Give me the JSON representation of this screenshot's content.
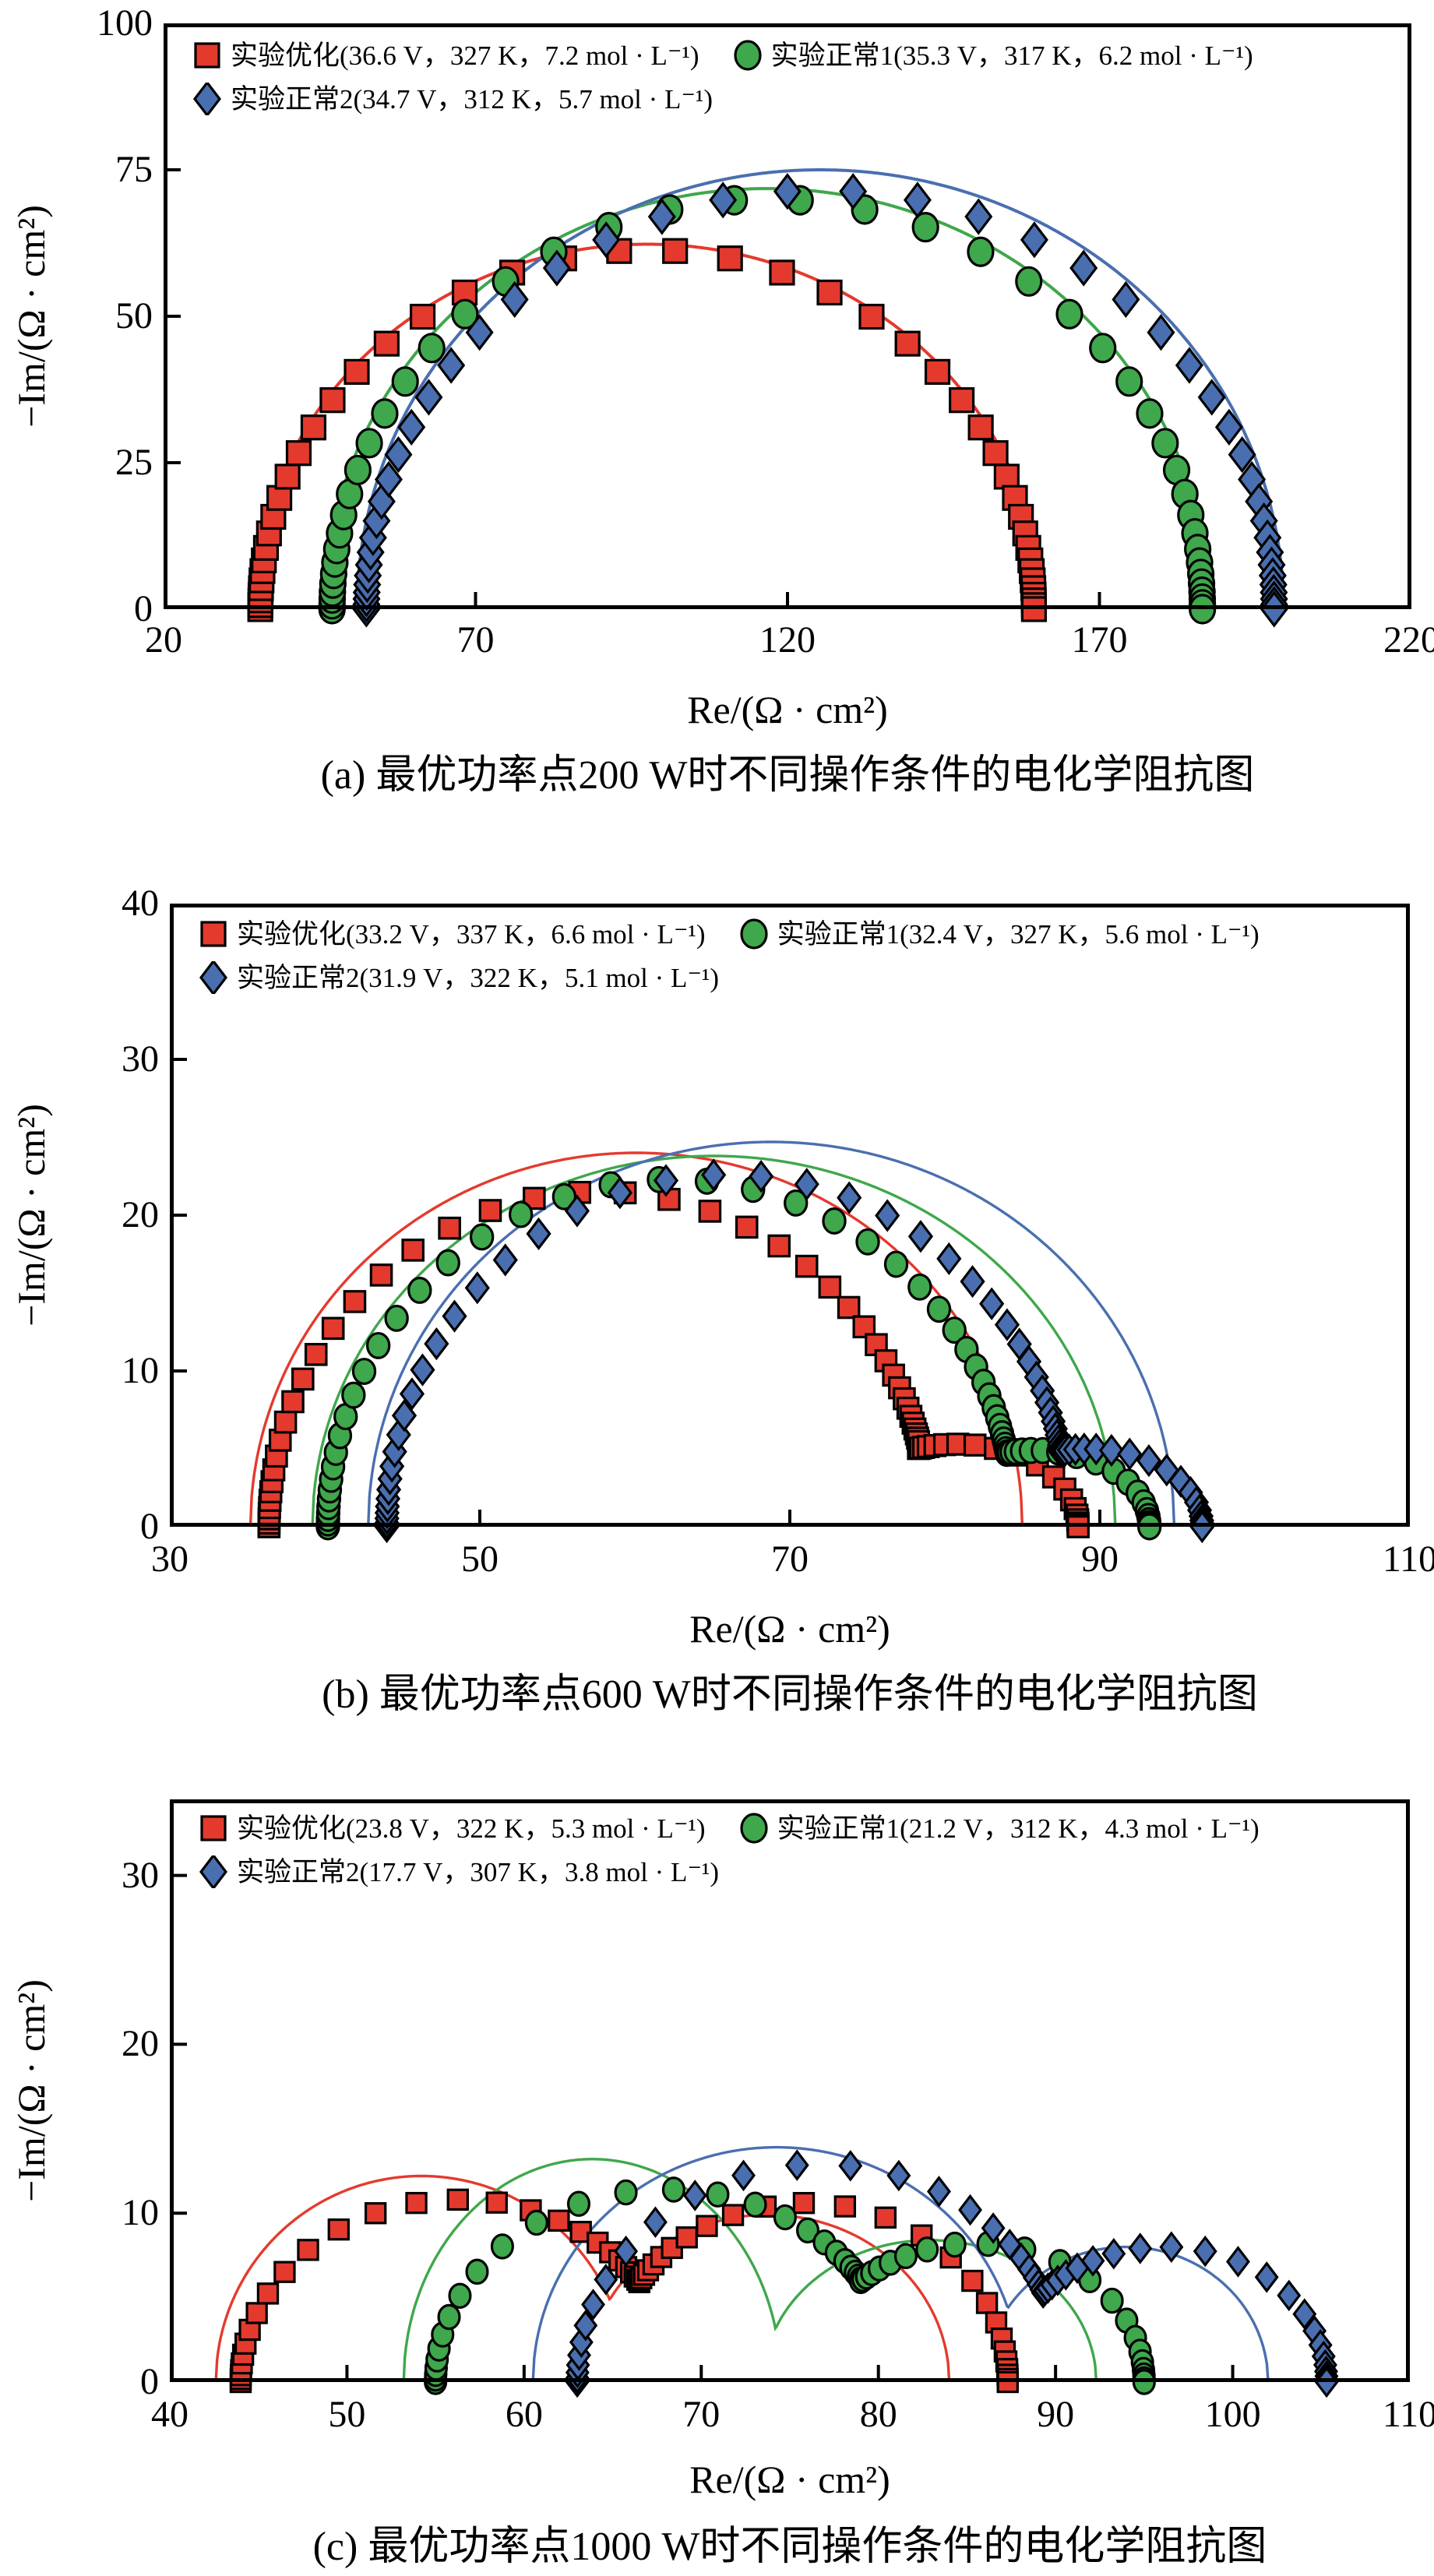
{
  "figure": {
    "background": "#ffffff",
    "axis_color": "#000000",
    "series_colors": {
      "optimized": "#e43a2e",
      "normal1": "#3fa74c",
      "normal2": "#4a6fb0"
    },
    "marker_shapes": {
      "optimized": "square",
      "normal1": "circle",
      "normal2": "diamond"
    }
  },
  "chart_data": [
    {
      "id": "a",
      "type": "scatter",
      "subtype": "nyquist-impedance",
      "caption": "(a) 最优功率点200 W时不同操作条件的电化学阻抗图",
      "xlabel": "Re/(Ω · cm²)",
      "ylabel": "−Im/(Ω · cm²)",
      "xlim": [
        20,
        220
      ],
      "ylim": [
        0,
        100
      ],
      "xticks": [
        20,
        70,
        120,
        170,
        220
      ],
      "yticks": [
        0,
        25,
        50,
        75,
        100
      ],
      "grid": false,
      "legend_position": "top-left-inside",
      "legend_rows": [
        [
          0,
          1
        ],
        [
          2
        ]
      ],
      "series": [
        {
          "label": "实验优化(36.6 V，327 K，7.2 mol · L⁻¹)",
          "marker": "square",
          "color": "#e43a2e",
          "marker_arcs": [
            [
              35.5,
              159.5,
              61.3
            ]
          ],
          "marker_samples": [
            {
              "seg": 0,
              "from": 35.5,
              "to": 159.5,
              "n": 46
            }
          ],
          "fit_arcs": [
            [
              34.6,
              160.5,
              62.3
            ]
          ],
          "readings": {
            "x_start": 35.5,
            "x_end": 159.5,
            "peak": 61.3,
            "peak_x": 97.5
          }
        },
        {
          "label": "实验正常1(35.3 V，317 K，6.2 mol · L⁻¹)",
          "marker": "circle",
          "color": "#3fa74c",
          "marker_arcs": [
            [
              47.0,
              186.5,
              70.0
            ]
          ],
          "marker_samples": [
            {
              "seg": 0,
              "from": 47.0,
              "to": 186.5,
              "n": 44
            }
          ],
          "fit_arcs": [
            [
              45.8,
              187.5,
              71.8
            ]
          ],
          "readings": {
            "x_start": 47.0,
            "x_end": 186.5,
            "peak": 70.0,
            "peak_x": 116.8
          }
        },
        {
          "label": "实验正常2(34.7 V，312 K，5.7 mol · L⁻¹)",
          "marker": "diamond",
          "color": "#4a6fb0",
          "marker_arcs": [
            [
              52.5,
              198.0,
              71.5
            ]
          ],
          "marker_samples": [
            {
              "seg": 0,
              "from": 52.5,
              "to": 198.0,
              "n": 46
            }
          ],
          "fit_arcs": [
            [
              51.0,
              199.5,
              75.0
            ]
          ],
          "readings": {
            "x_start": 52.5,
            "x_end": 198.0,
            "peak": 71.5,
            "peak_x": 125.3
          }
        }
      ]
    },
    {
      "id": "b",
      "type": "scatter",
      "subtype": "nyquist-impedance",
      "caption": "(b) 最优功率点600 W时不同操作条件的电化学阻抗图",
      "xlabel": "Re/(Ω · cm²)",
      "ylabel": "−Im/(Ω · cm²)",
      "xlim": [
        30,
        110
      ],
      "ylim": [
        0,
        40
      ],
      "xticks": [
        30,
        50,
        70,
        90,
        110
      ],
      "yticks": [
        0,
        10,
        20,
        30,
        40
      ],
      "grid": false,
      "legend_position": "top-left-inside",
      "legend_rows": [
        [
          0,
          1
        ],
        [
          2
        ]
      ],
      "series": [
        {
          "label": "实验优化(33.2 V，337 K，6.6 mol · L⁻¹)",
          "marker": "square",
          "color": "#e43a2e",
          "marker_arcs": [
            [
              36.4,
              79.0,
              21.5
            ],
            [
              73.0,
              88.6,
              5.3
            ]
          ],
          "marker_samples": [
            {
              "seg": 0,
              "from": 36.4,
              "to": 78.3,
              "n": 44
            },
            {
              "seg": 1,
              "from": 78.3,
              "to": 88.6,
              "n": 20
            }
          ],
          "fit_arcs": [
            [
              35.2,
              85.0,
              24.0
            ]
          ],
          "readings": {
            "x_start": 36.4,
            "x_end": 88.6,
            "peak": 21.5,
            "peak_x": 60.0,
            "shoulder": 5.3,
            "shoulder_x": 80.8
          }
        },
        {
          "label": "实验正常1(32.4 V，327 K，5.6 mol · L⁻¹)",
          "marker": "circle",
          "color": "#3fa74c",
          "marker_arcs": [
            [
              40.2,
              84.5,
              22.3
            ],
            [
              78.5,
              93.2,
              4.9
            ]
          ],
          "marker_samples": [
            {
              "seg": 0,
              "from": 40.2,
              "to": 84.0,
              "n": 44
            },
            {
              "seg": 1,
              "from": 84.0,
              "to": 93.2,
              "n": 20
            }
          ],
          "fit_arcs": [
            [
              39.2,
              91.0,
              23.8
            ]
          ],
          "readings": {
            "x_start": 40.2,
            "x_end": 93.2,
            "peak": 22.3,
            "peak_x": 64.0,
            "shoulder": 4.9,
            "shoulder_x": 85.9
          }
        },
        {
          "label": "实验正常2(31.9 V，322 K，5.1 mol · L⁻¹)",
          "marker": "diamond",
          "color": "#4a6fb0",
          "marker_arcs": [
            [
              44.0,
              88.0,
              22.6
            ],
            [
              82.0,
              96.6,
              5.0
            ]
          ],
          "marker_samples": [
            {
              "seg": 0,
              "from": 44.0,
              "to": 87.45,
              "n": 44
            },
            {
              "seg": 1,
              "from": 87.45,
              "to": 96.6,
              "n": 20
            }
          ],
          "fit_arcs": [
            [
              42.8,
              94.8,
              24.7
            ]
          ],
          "readings": {
            "x_start": 44.0,
            "x_end": 96.6,
            "peak": 22.6,
            "peak_x": 67.5,
            "shoulder": 5.0,
            "shoulder_x": 89.3
          }
        }
      ]
    },
    {
      "id": "c",
      "type": "scatter",
      "subtype": "nyquist-impedance",
      "caption": "(c) 最优功率点1000 W时不同操作条件的电化学阻抗图",
      "xlabel": "Re/(Ω · cm²)",
      "ylabel": "−Im/(Ω · cm²)",
      "xlim": [
        40,
        110
      ],
      "ylim": [
        0,
        34.5
      ],
      "xticks": [
        40,
        50,
        60,
        70,
        80,
        90,
        100,
        110
      ],
      "yticks": [
        0,
        10,
        20,
        30
      ],
      "grid": false,
      "legend_position": "top-left-inside",
      "legend_rows": [
        [
          0,
          1
        ],
        [
          2
        ]
      ],
      "series": [
        {
          "label": "实验优化(23.8 V，322 K，5.3 mol · L⁻¹)",
          "marker": "square",
          "color": "#e43a2e",
          "marker_arcs": [
            [
              44.0,
              68.5,
              10.8
            ],
            [
              64.5,
              87.3,
              10.6
            ]
          ],
          "marker_samples": [
            {
              "seg": 0,
              "from": 44.0,
              "to": 66.5,
              "n": 28
            },
            {
              "seg": 1,
              "from": 66.5,
              "to": 87.3,
              "n": 26
            }
          ],
          "fit_arcs": [
            [
              42.6,
              65.8,
              12.2
            ],
            [
              63.5,
              84.0,
              9.9
            ]
          ],
          "readings": {
            "x_start": 44.0,
            "x_end": 87.3,
            "hump1": 10.8,
            "hump1_x": 56.3,
            "dip": 6.0,
            "dip_x": 66.5,
            "hump2": 10.6,
            "hump2_x": 75.9
          }
        },
        {
          "label": "实验正常1(21.2 V，312 K，4.3 mol · L⁻¹)",
          "marker": "circle",
          "color": "#3fa74c",
          "marker_arcs": [
            [
              55.0,
              81.0,
              11.4
            ],
            [
              76.0,
              95.0,
              8.2
            ]
          ],
          "marker_samples": [
            {
              "seg": 0,
              "from": 55.0,
              "to": 79.0,
              "n": 26
            },
            {
              "seg": 1,
              "from": 79.0,
              "to": 95.0,
              "n": 22
            }
          ],
          "fit_arcs": [
            [
              53.2,
              74.5,
              13.2
            ],
            [
              73.5,
              92.3,
              8.4
            ]
          ],
          "readings": {
            "x_start": 55.0,
            "x_end": 95.0,
            "hump1": 11.4,
            "hump1_x": 68.0,
            "dip": 6.0,
            "dip_x": 79.0,
            "hump2": 8.2,
            "hump2_x": 85.5
          }
        },
        {
          "label": "实验正常2(17.7 V，307 K，3.8 mol · L⁻¹)",
          "marker": "diamond",
          "color": "#4a6fb0",
          "marker_arcs": [
            [
              63.0,
              90.5,
              12.9
            ],
            [
              87.0,
              105.3,
              8.0
            ]
          ],
          "marker_samples": [
            {
              "seg": 0,
              "from": 63.0,
              "to": 89.3,
              "n": 26
            },
            {
              "seg": 1,
              "from": 89.3,
              "to": 105.3,
              "n": 24
            }
          ],
          "fit_arcs": [
            [
              60.5,
              88.0,
              13.9
            ],
            [
              86.0,
              102.0,
              8.0
            ]
          ],
          "readings": {
            "x_start": 63.0,
            "x_end": 105.3,
            "hump1": 12.9,
            "hump1_x": 76.8,
            "dip": 5.3,
            "dip_x": 89.3,
            "hump2": 8.0,
            "hump2_x": 96.2
          }
        }
      ]
    }
  ]
}
